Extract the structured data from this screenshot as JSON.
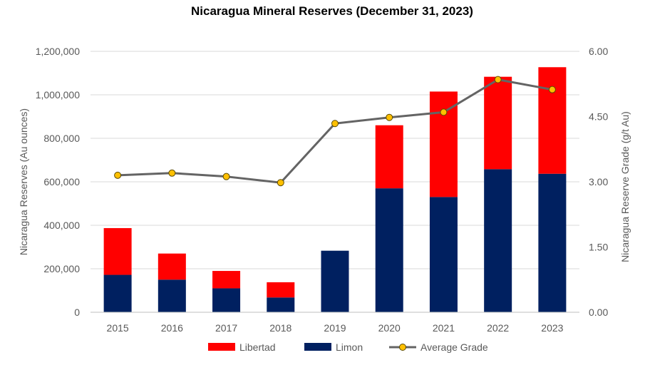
{
  "chart_data": {
    "type": "bar",
    "stacked": true,
    "title": "Nicaragua Mineral Reserves (December 31, 2023)",
    "xlabel": "",
    "ylabel": "Nicaragua Reserves (Au ounces)",
    "y2label": "Nicaragua Reserve Grade (g/t Au)",
    "categories": [
      "2015",
      "2016",
      "2017",
      "2018",
      "2019",
      "2020",
      "2021",
      "2022",
      "2023"
    ],
    "ylim": [
      0,
      1200000
    ],
    "y2lim": [
      0,
      6
    ],
    "yticks": [
      "0",
      "200,000",
      "400,000",
      "600,000",
      "800,000",
      "1,000,000",
      "1,200,000"
    ],
    "y2ticks": [
      "0.00",
      "1.50",
      "3.00",
      "4.50",
      "6.00"
    ],
    "grid": true,
    "legend_position": "bottom",
    "series": [
      {
        "name": "Libertad",
        "type": "bar",
        "axis": "left",
        "color": "#ff0000",
        "values": [
          215000,
          120000,
          80000,
          70000,
          0,
          290000,
          485000,
          425000,
          490000
        ]
      },
      {
        "name": "Limon",
        "type": "bar",
        "axis": "left",
        "color": "#002060",
        "values": [
          172000,
          150000,
          110000,
          68000,
          283000,
          570000,
          530000,
          658000,
          637000
        ]
      },
      {
        "name": "Average Grade",
        "type": "line",
        "axis": "right",
        "color": "#646464",
        "marker_color": "#ffc000",
        "values": [
          3.15,
          3.2,
          3.12,
          2.98,
          4.34,
          4.48,
          4.6,
          5.35,
          5.12
        ]
      }
    ]
  }
}
